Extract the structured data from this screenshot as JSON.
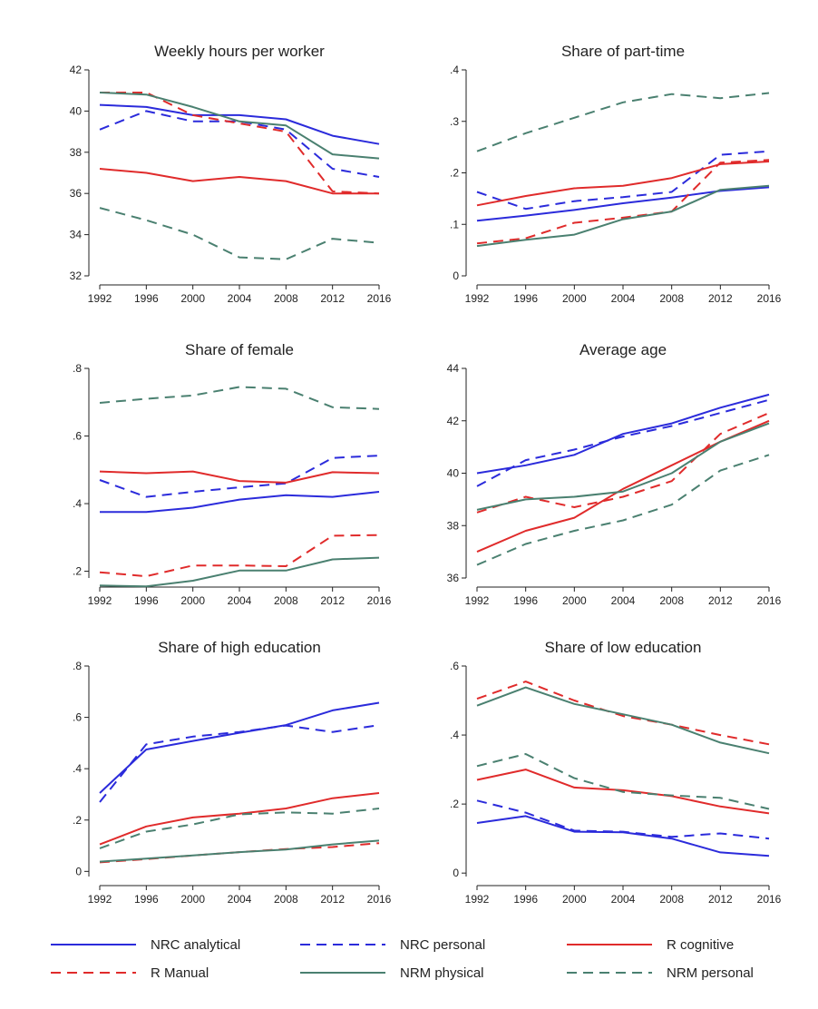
{
  "x_ticks": [
    "1992",
    "1996",
    "2000",
    "2004",
    "2008",
    "2012",
    "2016"
  ],
  "series_styles": [
    {
      "name": "NRC analytical",
      "color": "#2b2bdb",
      "dash": "solid"
    },
    {
      "name": "NRC personal",
      "color": "#2b2bdb",
      "dash": "dashed"
    },
    {
      "name": "R cognitive",
      "color": "#e02b2b",
      "dash": "solid"
    },
    {
      "name": "R Manual",
      "color": "#e02b2b",
      "dash": "dashed"
    },
    {
      "name": "NRM physical",
      "color": "#4a8070",
      "dash": "solid"
    },
    {
      "name": "NRM personal",
      "color": "#4a8070",
      "dash": "dashed"
    }
  ],
  "chart_data": [
    {
      "type": "line",
      "title": "Weekly hours per worker",
      "x": [
        1992,
        1996,
        2000,
        2004,
        2008,
        2012,
        2016
      ],
      "ylim": [
        32,
        42
      ],
      "yticks": [
        32,
        34,
        36,
        38,
        40,
        42
      ],
      "ytick_labels": [
        "32",
        "34",
        "36",
        "38",
        "40",
        "42"
      ],
      "series": [
        {
          "name": "NRC analytical",
          "values": [
            40.3,
            40.2,
            39.8,
            39.8,
            39.6,
            38.8,
            38.4
          ]
        },
        {
          "name": "NRC personal",
          "values": [
            39.1,
            40.0,
            39.5,
            39.5,
            39.1,
            37.2,
            36.8
          ]
        },
        {
          "name": "R cognitive",
          "values": [
            37.2,
            37.0,
            36.6,
            36.8,
            36.6,
            36.0,
            36.0
          ]
        },
        {
          "name": "R Manual",
          "values": [
            40.9,
            40.9,
            39.8,
            39.4,
            39.0,
            36.1,
            36.0
          ]
        },
        {
          "name": "NRM physical",
          "values": [
            40.9,
            40.8,
            40.2,
            39.5,
            39.3,
            37.9,
            37.7
          ]
        },
        {
          "name": "NRM personal",
          "values": [
            35.3,
            34.7,
            34.0,
            32.9,
            32.8,
            33.8,
            33.6
          ]
        }
      ]
    },
    {
      "type": "line",
      "title": "Share of part-time",
      "x": [
        1992,
        1996,
        2000,
        2004,
        2008,
        2012,
        2016
      ],
      "ylim": [
        0,
        0.4
      ],
      "yticks": [
        0,
        0.1,
        0.2,
        0.3,
        0.4
      ],
      "ytick_labels": [
        "0",
        ".1",
        ".2",
        ".3",
        ".4"
      ],
      "series": [
        {
          "name": "NRC analytical",
          "values": [
            0.107,
            0.117,
            0.128,
            0.141,
            0.152,
            0.165,
            0.172
          ]
        },
        {
          "name": "NRC personal",
          "values": [
            0.163,
            0.13,
            0.145,
            0.153,
            0.163,
            0.235,
            0.242
          ]
        },
        {
          "name": "R cognitive",
          "values": [
            0.137,
            0.155,
            0.17,
            0.175,
            0.19,
            0.217,
            0.222
          ]
        },
        {
          "name": "R Manual",
          "values": [
            0.063,
            0.073,
            0.103,
            0.113,
            0.125,
            0.22,
            0.225
          ]
        },
        {
          "name": "NRM physical",
          "values": [
            0.058,
            0.07,
            0.08,
            0.11,
            0.125,
            0.167,
            0.175
          ]
        },
        {
          "name": "NRM personal",
          "values": [
            0.242,
            0.277,
            0.307,
            0.337,
            0.353,
            0.345,
            0.355
          ]
        }
      ]
    },
    {
      "type": "line",
      "title": "Share of female",
      "x": [
        1992,
        1996,
        2000,
        2004,
        2008,
        2012,
        2016
      ],
      "ylim": [
        0.18,
        0.8
      ],
      "yticks": [
        0.2,
        0.4,
        0.6,
        0.8
      ],
      "ytick_labels": [
        ".2",
        ".4",
        ".6",
        ".8"
      ],
      "series": [
        {
          "name": "NRC analytical",
          "values": [
            0.375,
            0.375,
            0.388,
            0.412,
            0.425,
            0.42,
            0.435
          ]
        },
        {
          "name": "NRC personal",
          "values": [
            0.47,
            0.42,
            0.435,
            0.448,
            0.46,
            0.535,
            0.542
          ]
        },
        {
          "name": "R cognitive",
          "values": [
            0.495,
            0.49,
            0.495,
            0.467,
            0.462,
            0.493,
            0.49
          ]
        },
        {
          "name": "R Manual",
          "values": [
            0.197,
            0.185,
            0.217,
            0.217,
            0.215,
            0.305,
            0.307
          ]
        },
        {
          "name": "NRM physical",
          "values": [
            0.158,
            0.155,
            0.172,
            0.202,
            0.202,
            0.235,
            0.24
          ]
        },
        {
          "name": "NRM personal",
          "values": [
            0.698,
            0.71,
            0.72,
            0.745,
            0.74,
            0.685,
            0.68
          ]
        }
      ]
    },
    {
      "type": "line",
      "title": "Average age",
      "x": [
        1992,
        1996,
        2000,
        2004,
        2008,
        2012,
        2016
      ],
      "ylim": [
        36,
        44
      ],
      "yticks": [
        36,
        38,
        40,
        42,
        44
      ],
      "ytick_labels": [
        "36",
        "38",
        "40",
        "42",
        "44"
      ],
      "series": [
        {
          "name": "NRC analytical",
          "values": [
            40.0,
            40.3,
            40.7,
            41.5,
            41.9,
            42.5,
            43.0
          ]
        },
        {
          "name": "NRC personal",
          "values": [
            39.5,
            40.5,
            40.9,
            41.4,
            41.8,
            42.3,
            42.8
          ]
        },
        {
          "name": "R cognitive",
          "values": [
            37.0,
            37.8,
            38.3,
            39.4,
            40.3,
            41.2,
            42.0
          ]
        },
        {
          "name": "R Manual",
          "values": [
            38.5,
            39.1,
            38.7,
            39.1,
            39.7,
            41.5,
            42.3
          ]
        },
        {
          "name": "NRM physical",
          "values": [
            38.6,
            39.0,
            39.1,
            39.3,
            40.0,
            41.2,
            41.9
          ]
        },
        {
          "name": "NRM personal",
          "values": [
            36.5,
            37.3,
            37.8,
            38.2,
            38.8,
            40.1,
            40.7
          ]
        }
      ]
    },
    {
      "type": "line",
      "title": "Share of high education",
      "x": [
        1992,
        1996,
        2000,
        2004,
        2008,
        2012,
        2016
      ],
      "ylim": [
        -0.02,
        0.8
      ],
      "yticks": [
        0,
        0.2,
        0.4,
        0.6,
        0.8
      ],
      "ytick_labels": [
        "0",
        ".2",
        ".4",
        ".6",
        ".8"
      ],
      "series": [
        {
          "name": "NRC analytical",
          "values": [
            0.305,
            0.475,
            0.508,
            0.54,
            0.57,
            0.627,
            0.657
          ]
        },
        {
          "name": "NRC personal",
          "values": [
            0.27,
            0.495,
            0.525,
            0.543,
            0.568,
            0.543,
            0.57
          ]
        },
        {
          "name": "R cognitive",
          "values": [
            0.105,
            0.175,
            0.21,
            0.225,
            0.245,
            0.285,
            0.305
          ]
        },
        {
          "name": "R Manual",
          "values": [
            0.035,
            0.048,
            0.062,
            0.075,
            0.087,
            0.095,
            0.11
          ]
        },
        {
          "name": "NRM physical",
          "values": [
            0.038,
            0.05,
            0.062,
            0.075,
            0.085,
            0.105,
            0.12
          ]
        },
        {
          "name": "NRM personal",
          "values": [
            0.09,
            0.155,
            0.183,
            0.222,
            0.23,
            0.225,
            0.245
          ]
        }
      ]
    },
    {
      "type": "line",
      "title": "Share of low education",
      "x": [
        1992,
        1996,
        2000,
        2004,
        2008,
        2012,
        2016
      ],
      "ylim": [
        -0.01,
        0.6
      ],
      "yticks": [
        0,
        0.2,
        0.4,
        0.6
      ],
      "ytick_labels": [
        "0",
        ".2",
        ".4",
        ".6"
      ],
      "series": [
        {
          "name": "NRC analytical",
          "values": [
            0.145,
            0.165,
            0.12,
            0.118,
            0.1,
            0.06,
            0.05
          ]
        },
        {
          "name": "NRC personal",
          "values": [
            0.21,
            0.175,
            0.123,
            0.12,
            0.105,
            0.115,
            0.1
          ]
        },
        {
          "name": "R cognitive",
          "values": [
            0.27,
            0.3,
            0.248,
            0.24,
            0.223,
            0.193,
            0.173
          ]
        },
        {
          "name": "R Manual",
          "values": [
            0.505,
            0.555,
            0.5,
            0.455,
            0.43,
            0.4,
            0.373
          ]
        },
        {
          "name": "NRM physical",
          "values": [
            0.485,
            0.538,
            0.49,
            0.46,
            0.43,
            0.378,
            0.347
          ]
        },
        {
          "name": "NRM personal",
          "values": [
            0.31,
            0.345,
            0.275,
            0.235,
            0.225,
            0.218,
            0.186
          ]
        }
      ]
    }
  ]
}
